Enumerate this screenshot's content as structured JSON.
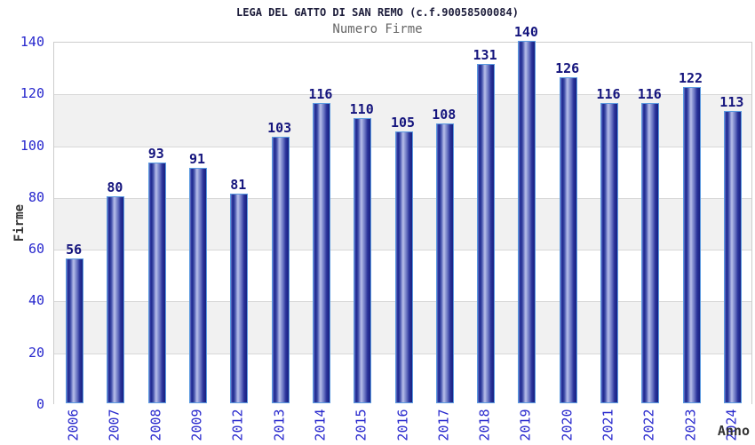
{
  "chart_data": {
    "type": "bar",
    "title": "LEGA DEL GATTO DI SAN REMO (c.f.90058500084)",
    "subtitle": "Numero Firme",
    "xlabel": "Anno",
    "ylabel": "Firme",
    "categories": [
      "2006",
      "2007",
      "2008",
      "2009",
      "2012",
      "2013",
      "2014",
      "2015",
      "2016",
      "2017",
      "2018",
      "2019",
      "2020",
      "2021",
      "2022",
      "2023",
      "2024"
    ],
    "values": [
      56,
      80,
      93,
      91,
      81,
      103,
      116,
      110,
      105,
      108,
      131,
      140,
      126,
      116,
      116,
      122,
      113
    ],
    "ylim": [
      0,
      140
    ],
    "yticks": [
      0,
      20,
      40,
      60,
      80,
      100,
      120,
      140
    ],
    "grid": "horizontal-bands",
    "legend": "none",
    "colors": {
      "tick_label": "#2727cd",
      "value_label": "#14147d",
      "title": "#1c1c3a",
      "subtitle": "#666666",
      "axis_title": "#333333",
      "bar_dark": "#1f2a8e",
      "bar_light": "#b8bfe9",
      "bar_edge": "#5b9ae0",
      "band_gray": "#f1f1f1",
      "band_white": "#ffffff",
      "gridline": "#d8d8d8",
      "plot_border": "#cccccc"
    }
  }
}
